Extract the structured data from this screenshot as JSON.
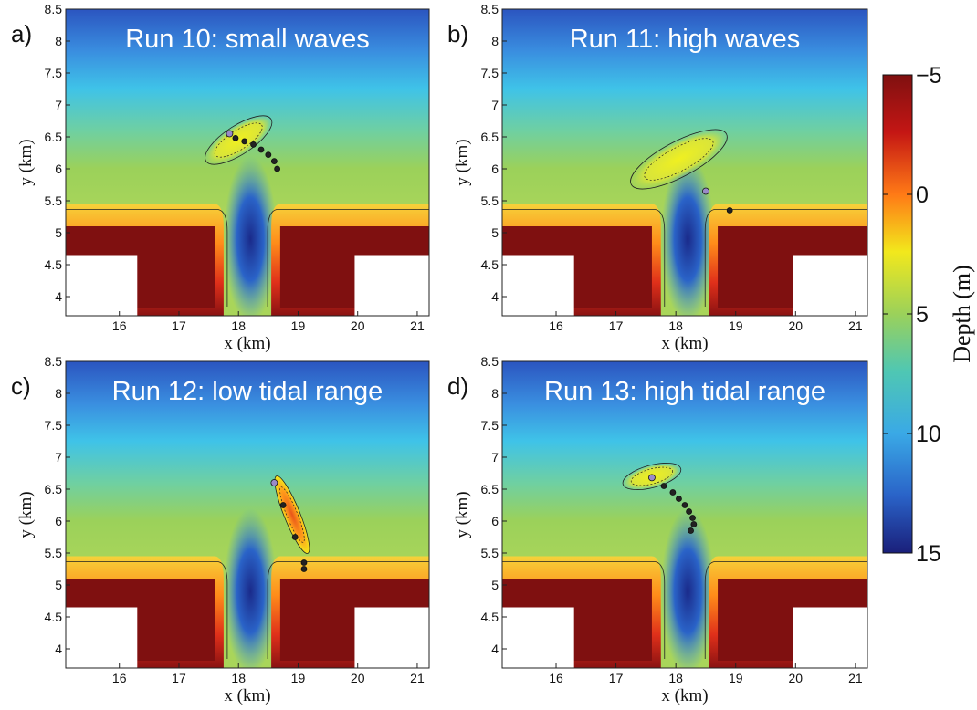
{
  "chart_data": {
    "type": "heatmap",
    "colorbar": {
      "label": "Depth (m)",
      "ticks": [
        "−5",
        "0",
        "5",
        "10",
        "15"
      ],
      "range": [
        -5,
        15
      ],
      "colors": [
        "#7f1010",
        "#e61e10",
        "#ff9a1a",
        "#f2e81c",
        "#9bd15a",
        "#4fc7b3",
        "#3aa9e6",
        "#2a63c8",
        "#1a1f7a"
      ]
    },
    "panels": [
      {
        "label": "a)",
        "title": "Run 10: small waves",
        "xlabel": "x (km)",
        "ylabel": "y (km)",
        "xticks": [
          "16",
          "17",
          "18",
          "19",
          "20",
          "21"
        ],
        "yticks": [
          "4",
          "4.5",
          "5",
          "5.5",
          "6",
          "6.5",
          "7",
          "7.5",
          "8",
          "8.5"
        ],
        "xlim": [
          15.1,
          21.2
        ],
        "ylim": [
          3.7,
          8.5
        ],
        "shoal": {
          "center": [
            18.0,
            6.45
          ],
          "length_km": 1.3,
          "width_km": 0.45,
          "angle_deg": 33
        },
        "dots": [
          [
            17.85,
            6.55
          ],
          [
            17.95,
            6.48
          ],
          [
            18.1,
            6.43
          ],
          [
            18.25,
            6.38
          ],
          [
            18.38,
            6.3
          ],
          [
            18.5,
            6.22
          ],
          [
            18.6,
            6.12
          ],
          [
            18.65,
            6.0
          ]
        ]
      },
      {
        "label": "b)",
        "title": "Run 11: high waves",
        "xlabel": "x (km)",
        "ylabel": "y (km)",
        "xticks": [
          "16",
          "17",
          "18",
          "19",
          "20",
          "21"
        ],
        "yticks": [
          "4",
          "4.5",
          "5",
          "5.5",
          "6",
          "6.5",
          "7",
          "7.5",
          "8",
          "8.5"
        ],
        "xlim": [
          15.1,
          21.2
        ],
        "ylim": [
          3.7,
          8.5
        ],
        "shoal": {
          "center": [
            18.05,
            6.15
          ],
          "length_km": 1.8,
          "width_km": 0.55,
          "angle_deg": 28
        },
        "dots": [
          [
            18.5,
            5.65
          ],
          [
            18.9,
            5.35
          ]
        ]
      },
      {
        "label": "c)",
        "title": "Run 12: low tidal range",
        "xlabel": "x (km)",
        "ylabel": "y (km)",
        "xticks": [
          "16",
          "17",
          "18",
          "19",
          "20",
          "21"
        ],
        "yticks": [
          "4",
          "4.5",
          "5",
          "5.5",
          "6",
          "6.5",
          "7",
          "7.5",
          "8",
          "8.5"
        ],
        "xlim": [
          15.1,
          21.2
        ],
        "ylim": [
          3.7,
          8.5
        ],
        "shoal": {
          "center": [
            18.9,
            6.1
          ],
          "length_km": 1.4,
          "width_km": 0.25,
          "angle_deg": -68
        },
        "dots": [
          [
            18.6,
            6.6
          ],
          [
            18.75,
            6.25
          ],
          [
            18.95,
            5.75
          ],
          [
            19.1,
            5.35
          ],
          [
            19.1,
            5.25
          ]
        ]
      },
      {
        "label": "d)",
        "title": "Run 13: high tidal range",
        "xlabel": "x (km)",
        "ylabel": "y (km)",
        "xticks": [
          "16",
          "17",
          "18",
          "19",
          "20",
          "21"
        ],
        "yticks": [
          "4",
          "4.5",
          "5",
          "5.5",
          "6",
          "6.5",
          "7",
          "7.5",
          "8",
          "8.5"
        ],
        "xlim": [
          15.1,
          21.2
        ],
        "ylim": [
          3.7,
          8.5
        ],
        "shoal": {
          "center": [
            17.6,
            6.7
          ],
          "length_km": 1.0,
          "width_km": 0.35,
          "angle_deg": 15
        },
        "dots": [
          [
            17.6,
            6.68
          ],
          [
            17.8,
            6.55
          ],
          [
            17.95,
            6.45
          ],
          [
            18.05,
            6.35
          ],
          [
            18.15,
            6.25
          ],
          [
            18.22,
            6.15
          ],
          [
            18.28,
            6.05
          ],
          [
            18.3,
            5.95
          ],
          [
            18.25,
            5.85
          ]
        ]
      }
    ]
  }
}
